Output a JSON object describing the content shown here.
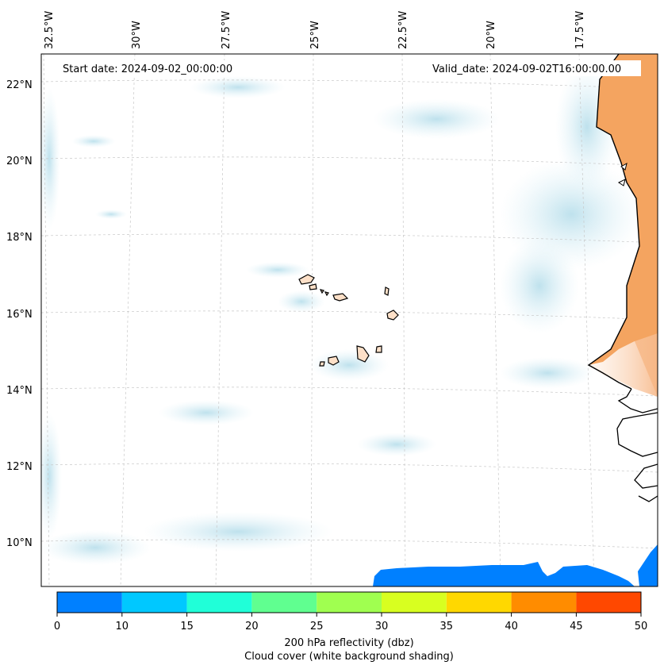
{
  "header": {
    "start_date": "Start date: 2024-09-02_00:00:00",
    "valid_date": "Valid_date: 2024-09-02T16:00:00.00"
  },
  "axes": {
    "lon_labels": [
      "32.5°W",
      "30°W",
      "27.5°W",
      "25°W",
      "22.5°W",
      "20°W",
      "17.5°W"
    ],
    "lat_labels": [
      "22°N",
      "20°N",
      "18°N",
      "16°N",
      "14°N",
      "12°N",
      "10°N"
    ]
  },
  "colorbar": {
    "ticks": [
      "0",
      "10",
      "15",
      "20",
      "25",
      "30",
      "35",
      "40",
      "45",
      "50"
    ],
    "colors": [
      "#0080ff",
      "#00c8ff",
      "#20ffd8",
      "#60ff90",
      "#a0ff50",
      "#d8ff20",
      "#ffd800",
      "#ff8c00",
      "#ff4800"
    ],
    "label": "200 hPa reflectivity (dbz)",
    "sublabel": "Cloud cover (white background shading)"
  },
  "colors": {
    "land": "#f4a460",
    "cloud": "#a8d8e8",
    "sea_reflectivity": "#0080ff",
    "island_fill": "#fde0c8"
  }
}
